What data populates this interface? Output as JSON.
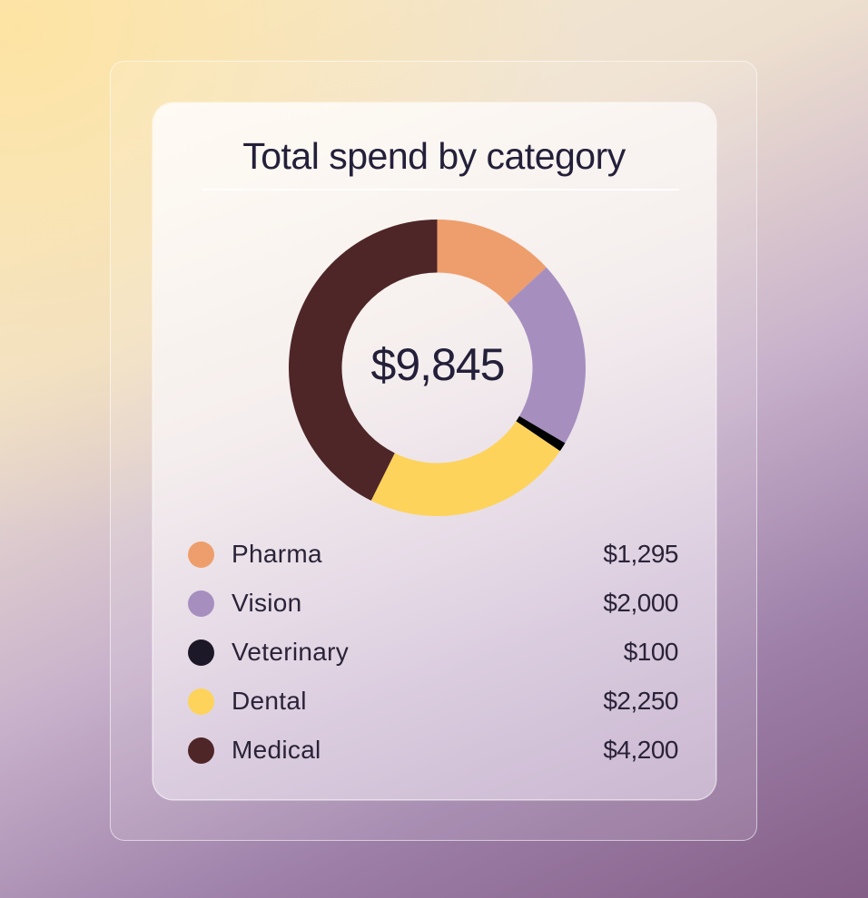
{
  "card": {
    "title": "Total spend by category",
    "total": "$9,845"
  },
  "colors": {
    "pharma": "#ee9e6c",
    "vision": "#a68fbf",
    "veterinary": "#000000",
    "dental": "#fdd35b",
    "medical": "#4e2628"
  },
  "chart_data": {
    "type": "pie",
    "title": "Total spend by category",
    "center_label": "$9,845",
    "donut": true,
    "categories": [
      "Pharma",
      "Vision",
      "Veterinary",
      "Dental",
      "Medical"
    ],
    "values": [
      1295,
      2000,
      100,
      2250,
      4200
    ],
    "value_labels": [
      "$1,295",
      "$2,000",
      "$100",
      "$2,250",
      "$4,200"
    ],
    "colors": [
      "#ee9e6c",
      "#a68fbf",
      "#000000",
      "#fdd35b",
      "#4e2628"
    ],
    "legend_dot_colors": [
      "#ee9e6c",
      "#a68fbf",
      "#1c1827",
      "#fdd35b",
      "#4e2628"
    ],
    "legend_position": "bottom"
  }
}
